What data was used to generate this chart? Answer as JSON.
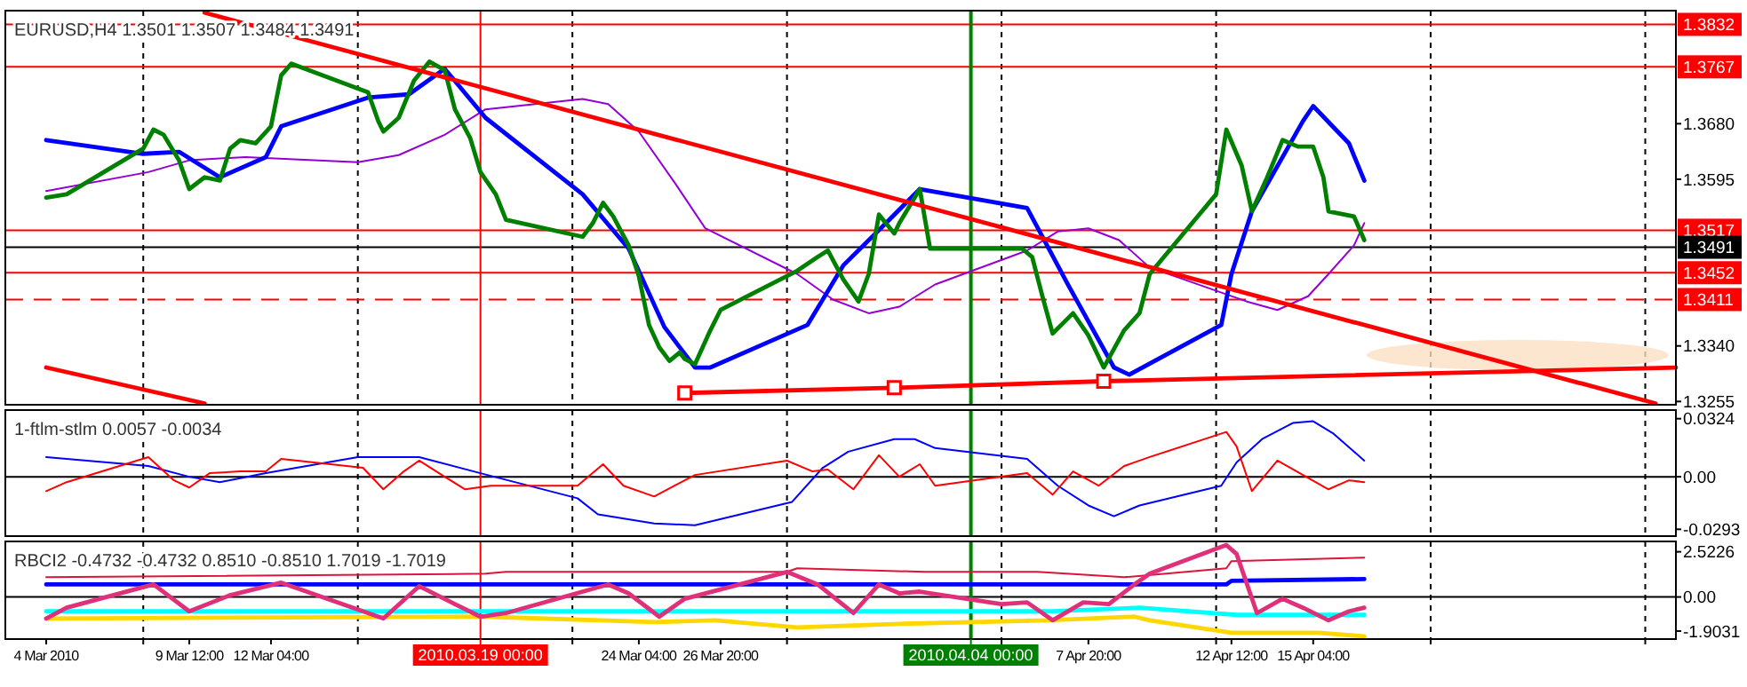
{
  "chart_data": [
    {
      "type": "line",
      "title": "EURUSD,H4  1.3501 1.3507 1.3484 1.3491",
      "xlim": [
        "2010-03-03T12:00",
        "2010-04-27T00:00"
      ],
      "ylim": [
        1.325,
        1.3853
      ],
      "tick_labels": "y",
      "grid": "x",
      "xticks": [
        {
          "value": "2010-03-08",
          "label": null
        },
        {
          "value": "2010-03-15",
          "label": null
        },
        {
          "value": "2010-03-22",
          "label": null
        },
        {
          "value": "2010-03-29",
          "label": null
        },
        {
          "value": "2010-04-05",
          "label": null
        },
        {
          "value": "2010-04-12",
          "label": null
        },
        {
          "value": "2010-04-19",
          "label": null
        },
        {
          "value": "2010-04-26",
          "label": null
        }
      ],
      "yticks": [
        1.3255,
        {
          "value": 1.334,
          "label": "1.3340"
        },
        1.3595,
        {
          "value": 1.368,
          "label": "1.3680"
        }
      ],
      "ref_lines": [
        {
          "axis": "y",
          "value": 1.3832,
          "label": "1.3832",
          "color": "#ff0000"
        },
        {
          "axis": "y",
          "value": 1.3767,
          "label": "1.3767",
          "color": "#ff0000"
        },
        {
          "axis": "y",
          "value": 1.3517,
          "label": "1.3517",
          "color": "#ff0000"
        },
        {
          "axis": "y",
          "value": 1.3491,
          "label": "1.3491",
          "color": "#000000"
        },
        {
          "axis": "y",
          "value": 1.3452,
          "label": "1.3452",
          "color": "#ff0000"
        },
        {
          "axis": "y",
          "value": 1.3411,
          "label": "1.3411",
          "color": "#ff0000",
          "line_style": "dashed"
        },
        {
          "axis": "x",
          "value": "2010-03-19T00:00",
          "color": "#ff0000"
        },
        {
          "axis": "x",
          "value": "2010-04-04T00:00",
          "color": "#008000"
        }
      ],
      "series": [
        {
          "color": "#9400d3",
          "x": [
            "2010-03-04T20:00",
            "2010-03-08T04:00",
            "2010-03-09T12:00",
            "2010-03-11T08:00",
            "2010-03-15T00:00",
            "2010-03-16T08:00",
            "2010-03-17T20:00",
            "2010-03-19T04:00",
            "2010-03-22T08:00",
            "2010-03-23T04:00",
            "2010-03-24T04:00",
            "2010-03-25T08:00",
            "2010-03-26T08:00",
            "2010-03-29T08:00",
            "2010-03-30T12:00",
            "2010-03-31T16:00",
            "2010-04-01T16:00",
            "2010-04-02T20:00",
            "2010-04-05T20:00",
            "2010-04-06T20:00",
            "2010-04-07T20:00",
            "2010-04-08T20:00",
            "2010-04-09T20:00",
            "2010-04-13T00:00",
            "2010-04-14T00:00",
            "2010-04-15T00:00",
            "2010-04-15T16:00",
            "2010-04-16T12:00",
            "2010-04-16T20:00"
          ],
          "values": [
            1.3577,
            1.3606,
            1.3624,
            1.3629,
            1.3621,
            1.3632,
            1.3663,
            1.3702,
            1.3718,
            1.371,
            1.3668,
            1.359,
            1.352,
            1.345,
            1.3411,
            1.339,
            1.34,
            1.3434,
            1.3486,
            1.3515,
            1.352,
            1.3502,
            1.346,
            1.3408,
            1.3395,
            1.3416,
            1.345,
            1.3494,
            1.3528
          ]
        },
        {
          "color": "#0000ff",
          "x": [
            "2010-03-04T20:00",
            "2010-03-08T00:00",
            "2010-03-09T04:00",
            "2010-03-10T12:00",
            "2010-03-12T00:00",
            "2010-03-12T12:00",
            "2010-03-15T08:00",
            "2010-03-16T16:00",
            "2010-03-17T20:00",
            "2010-03-19T04:00",
            "2010-03-22T08:00",
            "2010-03-23T20:00",
            "2010-03-25T00:00",
            "2010-03-26T00:00",
            "2010-03-26T12:00",
            "2010-03-29T16:00",
            "2010-03-30T20:00",
            "2010-04-01T04:00",
            "2010-04-02T08:00",
            "2010-04-05T20:00",
            "2010-04-07T04:00",
            "2010-04-08T16:00",
            "2010-04-09T04:00",
            "2010-04-12T04:00",
            "2010-04-12T12:00",
            "2010-04-13T04:00",
            "2010-04-14T20:00",
            "2010-04-15T04:00",
            "2010-04-16T08:00",
            "2010-04-16T20:00"
          ],
          "values": [
            1.3655,
            1.3634,
            1.3637,
            1.3598,
            1.3629,
            1.3676,
            1.372,
            1.3725,
            1.3764,
            1.3689,
            1.3572,
            1.3489,
            1.3369,
            1.3307,
            1.3307,
            1.3372,
            1.3463,
            1.3525,
            1.358,
            1.3551,
            1.3434,
            1.3307,
            1.3296,
            1.3372,
            1.345,
            1.3546,
            1.3684,
            1.3707,
            1.365,
            1.3593
          ]
        },
        {
          "color": "#008000",
          "x": [
            "2010-03-04T20:00",
            "2010-03-05T12:00",
            "2010-03-08T00:00",
            "2010-03-08T08:00",
            "2010-03-08T16:00",
            "2010-03-09T04:00",
            "2010-03-09T12:00",
            "2010-03-10T00:00",
            "2010-03-10T12:00",
            "2010-03-10T20:00",
            "2010-03-11T04:00",
            "2010-03-11T16:00",
            "2010-03-12T04:00",
            "2010-03-12T12:00",
            "2010-03-12T20:00",
            "2010-03-15T08:00",
            "2010-03-15T16:00",
            "2010-03-15T20:00",
            "2010-03-16T08:00",
            "2010-03-16T20:00",
            "2010-03-17T08:00",
            "2010-03-17T20:00",
            "2010-03-18T04:00",
            "2010-03-18T16:00",
            "2010-03-19T00:00",
            "2010-03-19T12:00",
            "2010-03-19T20:00",
            "2010-03-22T08:00",
            "2010-03-22T16:00",
            "2010-03-23T00:00",
            "2010-03-23T08:00",
            "2010-03-23T20:00",
            "2010-03-24T04:00",
            "2010-03-24T12:00",
            "2010-03-24T20:00",
            "2010-03-25T04:00",
            "2010-03-25T12:00",
            "2010-03-25T16:00",
            "2010-03-26T00:00",
            "2010-03-26T12:00",
            "2010-03-26T20:00",
            "2010-03-29T08:00",
            "2010-03-30T00:00",
            "2010-03-30T08:00",
            "2010-03-30T20:00",
            "2010-03-31T08:00",
            "2010-03-31T16:00",
            "2010-04-01T00:00",
            "2010-04-01T12:00",
            "2010-04-01T16:00",
            "2010-04-02T08:00",
            "2010-04-02T16:00",
            "2010-04-05T16:00",
            "2010-04-06T00:00",
            "2010-04-06T08:00",
            "2010-04-06T16:00",
            "2010-04-07T08:00",
            "2010-04-07T20:00",
            "2010-04-08T08:00",
            "2010-04-09T00:00",
            "2010-04-09T12:00",
            "2010-04-09T20:00",
            "2010-04-12T00:00",
            "2010-04-12T08:00",
            "2010-04-12T20:00",
            "2010-04-13T04:00",
            "2010-04-13T16:00",
            "2010-04-14T04:00",
            "2010-04-14T16:00",
            "2010-04-15T04:00",
            "2010-04-15T12:00",
            "2010-04-15T16:00",
            "2010-04-16T12:00",
            "2010-04-16T16:00",
            "2010-04-16T20:00"
          ],
          "values": [
            1.3567,
            1.3572,
            1.3642,
            1.3671,
            1.3663,
            1.3624,
            1.358,
            1.3598,
            1.3593,
            1.3642,
            1.3655,
            1.365,
            1.3676,
            1.3754,
            1.3772,
            1.3728,
            1.3684,
            1.3668,
            1.3689,
            1.3746,
            1.3775,
            1.3762,
            1.3702,
            1.3658,
            1.3606,
            1.3572,
            1.3533,
            1.3507,
            1.3528,
            1.3559,
            1.3538,
            1.3494,
            1.3447,
            1.3372,
            1.3338,
            1.3317,
            1.333,
            1.332,
            1.3312,
            1.3364,
            1.3395,
            1.3455,
            1.3476,
            1.3486,
            1.3442,
            1.3408,
            1.345,
            1.3541,
            1.3512,
            1.3528,
            1.358,
            1.3489,
            1.3489,
            1.3476,
            1.3416,
            1.3359,
            1.339,
            1.3356,
            1.3307,
            1.3364,
            1.339,
            1.345,
            1.3572,
            1.3671,
            1.3616,
            1.3546,
            1.3598,
            1.3655,
            1.3645,
            1.3645,
            1.3598,
            1.3546,
            1.3538,
            1.352,
            1.3502
          ]
        },
        {
          "color": "#ff0000",
          "x": [
            "2010-03-10T00:00",
            "2010-04-26T08:00"
          ],
          "values": [
            1.385,
            1.3252
          ]
        },
        {
          "color": "#ff0000",
          "x": [
            "2010-03-04T20:00",
            "2010-03-10T00:00"
          ],
          "values": [
            1.3307,
            1.3252
          ]
        },
        {
          "color": "#ff0000",
          "x": [
            "2010-04-08T08:00",
            "2010-04-27T00:00"
          ],
          "values": [
            1.3286,
            1.3307
          ]
        },
        {
          "color": "#ff0000",
          "marker": "square",
          "x": [
            "2010-03-25T16:00",
            "2010-04-01T12:00",
            "2010-04-08T08:00"
          ],
          "values": [
            1.3268,
            1.3276,
            1.3286
          ]
        }
      ]
    },
    {
      "type": "line",
      "title": "1-ftlm-stlm 0.0057 -0.0034",
      "xlim": [
        "2010-03-03T12:00",
        "2010-04-27T00:00"
      ],
      "ylim": [
        -0.0331,
        0.0372
      ],
      "tick_labels": "y",
      "grid": "x",
      "xticks": [
        {
          "value": "2010-03-08",
          "label": null
        },
        {
          "value": "2010-03-15",
          "label": null
        },
        {
          "value": "2010-03-22",
          "label": null
        },
        {
          "value": "2010-03-29",
          "label": null
        },
        {
          "value": "2010-04-05",
          "label": null
        },
        {
          "value": "2010-04-12",
          "label": null
        },
        {
          "value": "2010-04-19",
          "label": null
        },
        {
          "value": "2010-04-26",
          "label": null
        }
      ],
      "yticks": [
        -0.0293,
        {
          "value": 0,
          "label": "0.00"
        },
        0.0324
      ],
      "ref_lines": [
        {
          "axis": "y",
          "value": 0,
          "color": "#000000"
        },
        {
          "axis": "x",
          "value": "2010-03-19T00:00",
          "color": "#ff0000"
        },
        {
          "axis": "x",
          "value": "2010-04-04T00:00",
          "color": "#008000"
        }
      ],
      "series": [
        {
          "color": "#0000ff",
          "x": [
            "2010-03-04T20:00",
            "2010-03-08T04:00",
            "2010-03-09T12:00",
            "2010-03-10T12:00",
            "2010-03-12T00:00",
            "2010-03-15T00:00",
            "2010-03-17T00:00",
            "2010-03-19T00:00",
            "2010-03-22T04:00",
            "2010-03-22T20:00",
            "2010-03-24T16:00",
            "2010-03-26T00:00",
            "2010-03-29T04:00",
            "2010-03-30T04:00",
            "2010-03-31T00:00",
            "2010-04-01T12:00",
            "2010-04-02T04:00",
            "2010-04-02T20:00",
            "2010-04-05T20:00",
            "2010-04-06T20:00",
            "2010-04-07T20:00",
            "2010-04-08T16:00",
            "2010-04-09T12:00",
            "2010-04-12T04:00",
            "2010-04-12T16:00",
            "2010-04-13T12:00",
            "2010-04-14T12:00",
            "2010-04-15T04:00",
            "2010-04-15T20:00",
            "2010-04-16T20:00"
          ],
          "values": [
            0.011,
            0.006,
            0,
            -0.003,
            0.002,
            0.011,
            0.011,
            0.002,
            -0.012,
            -0.021,
            -0.026,
            -0.027,
            -0.014,
            0.005,
            0.014,
            0.021,
            0.021,
            0.016,
            0.01,
            -0.005,
            -0.016,
            -0.022,
            -0.016,
            -0.005,
            0.008,
            0.021,
            0.03,
            0.031,
            0.024,
            0.009
          ]
        },
        {
          "color": "#ff0000",
          "x": [
            "2010-03-04T20:00",
            "2010-03-05T12:00",
            "2010-03-08T04:00",
            "2010-03-09T00:00",
            "2010-03-09T12:00",
            "2010-03-10T04:00",
            "2010-03-11T04:00",
            "2010-03-12T00:00",
            "2010-03-12T12:00",
            "2010-03-15T04:00",
            "2010-03-15T20:00",
            "2010-03-16T12:00",
            "2010-03-17T00:00",
            "2010-03-17T20:00",
            "2010-03-18T12:00",
            "2010-03-19T08:00",
            "2010-03-22T04:00",
            "2010-03-23T00:00",
            "2010-03-23T16:00",
            "2010-03-24T16:00",
            "2010-03-25T08:00",
            "2010-03-26T00:00",
            "2010-03-29T00:00",
            "2010-03-29T20:00",
            "2010-03-30T08:00",
            "2010-03-31T04:00",
            "2010-04-01T00:00",
            "2010-04-01T16:00",
            "2010-04-02T08:00",
            "2010-04-02T20:00",
            "2010-04-05T20:00",
            "2010-04-06T16:00",
            "2010-04-07T08:00",
            "2010-04-08T04:00",
            "2010-04-09T00:00",
            "2010-04-09T20:00",
            "2010-04-12T08:00",
            "2010-04-12T16:00",
            "2010-04-13T04:00",
            "2010-04-14T00:00",
            "2010-04-14T20:00",
            "2010-04-15T16:00",
            "2010-04-16T08:00",
            "2010-04-16T20:00"
          ],
          "values": [
            -0.008,
            -0.003,
            0.011,
            -0.002,
            -0.006,
            0.002,
            0.003,
            0.003,
            0.01,
            0.005,
            -0.007,
            0.003,
            0.009,
            0,
            -0.007,
            -0.005,
            -0.005,
            0.007,
            -0.005,
            -0.011,
            -0.005,
            0.001,
            0.009,
            0.003,
            0.004,
            -0.007,
            0.012,
            0,
            0.007,
            -0.005,
            0.002,
            -0.01,
            0.003,
            -0.005,
            0.006,
            0.011,
            0.025,
            0.017,
            -0.008,
            0.009,
            0.001,
            -0.007,
            -0.002,
            -0.003
          ]
        }
      ]
    },
    {
      "type": "line",
      "title": "RBCI2 -0.4732 -0.4732 0.8510 -0.8510 1.7019 -1.7019",
      "xlim": [
        "2010-03-03T12:00",
        "2010-04-27T00:00"
      ],
      "ylim": [
        -2.35,
        3.1
      ],
      "grid": "x",
      "xticks": [
        {
          "value": "2010-03-04T20:00",
          "label": "4 Mar 2010"
        },
        {
          "value": "2010-03-08",
          "label": null
        },
        {
          "value": "2010-03-09T12:00",
          "label": "9 Mar 12:00"
        },
        {
          "value": "2010-03-12T04:00",
          "label": "12 Mar 04:00"
        },
        {
          "value": "2010-03-15",
          "label": null
        },
        {
          "value": "2010-03-22",
          "label": null
        },
        {
          "value": "2010-03-24T04:00",
          "label": "24 Mar 04:00"
        },
        {
          "value": "2010-03-26T20:00",
          "label": "26 Mar 20:00"
        },
        {
          "value": "2010-03-29",
          "label": null
        },
        {
          "value": "2010-04-05",
          "label": null
        },
        {
          "value": "2010-04-07T20:00",
          "label": "7 Apr 20:00"
        },
        {
          "value": "2010-04-12",
          "label": null
        },
        {
          "value": "2010-04-12T12:00",
          "label": "12 Apr 12:00"
        },
        {
          "value": "2010-04-15T04:00",
          "label": "15 Apr 04:00"
        },
        {
          "value": "2010-04-19",
          "label": null
        },
        {
          "value": "2010-04-26",
          "label": null
        }
      ],
      "yticks": [
        -1.9031,
        {
          "value": 0,
          "label": "0.00"
        },
        2.5226
      ],
      "ref_lines": [
        {
          "axis": "y",
          "value": 0,
          "color": "#000000"
        },
        {
          "axis": "x",
          "value": "2010-03-19T00:00",
          "label": "2010.03.19 00:00",
          "color": "#ff0000"
        },
        {
          "axis": "x",
          "value": "2010-04-04T00:00",
          "label": "2010.04.04 00:00",
          "color": "#008000"
        }
      ],
      "series": [
        {
          "color": "#dc143c",
          "x": [
            "2010-03-04T20:00",
            "2010-03-19T04:00",
            "2010-03-19T20:00",
            "2010-03-29T00:00",
            "2010-03-29T08:00",
            "2010-04-02T12:00",
            "2010-04-06T04:00",
            "2010-04-09T00:00",
            "2010-04-12T08:00",
            "2010-04-12T12:00",
            "2010-04-16T20:00"
          ],
          "values": [
            1.1,
            1.3,
            1.4,
            1.4,
            1.6,
            1.4,
            1.4,
            1.1,
            1.6,
            2.0,
            2.2
          ]
        },
        {
          "color": "#0000ff",
          "x": [
            "2010-03-04T20:00",
            "2010-04-12T08:00",
            "2010-04-12T12:00",
            "2010-04-16T20:00"
          ],
          "values": [
            0.7,
            0.7,
            0.9,
            1.0
          ]
        },
        {
          "color": "#00ffff",
          "x": [
            "2010-03-04T20:00",
            "2010-04-06T16:00",
            "2010-04-09T12:00",
            "2010-04-12T16:00",
            "2010-04-16T20:00"
          ],
          "values": [
            -0.8,
            -0.8,
            -0.6,
            -1.0,
            -1.0
          ]
        },
        {
          "color": "#ffd700",
          "x": [
            "2010-03-04T20:00",
            "2010-03-19T04:00",
            "2010-03-24T16:00",
            "2010-03-26T16:00",
            "2010-03-29T08:00",
            "2010-04-01T16:00",
            "2010-04-06T12:00",
            "2010-04-09T08:00",
            "2010-04-09T20:00",
            "2010-04-12T12:00",
            "2010-04-15T08:00",
            "2010-04-16T20:00"
          ],
          "values": [
            -1.2,
            -1.1,
            -1.4,
            -1.3,
            -1.7,
            -1.5,
            -1.3,
            -1.1,
            -1.3,
            -2.0,
            -2.0,
            -2.2
          ]
        },
        {
          "color": "#e0307a",
          "x": [
            "2010-03-04T20:00",
            "2010-03-05T12:00",
            "2010-03-08T08:00",
            "2010-03-09T12:00",
            "2010-03-10T20:00",
            "2010-03-12T12:00",
            "2010-03-15T20:00",
            "2010-03-17T00:00",
            "2010-03-18T04:00",
            "2010-03-19T00:00",
            "2010-03-19T20:00",
            "2010-03-23T04:00",
            "2010-03-23T20:00",
            "2010-03-24T20:00",
            "2010-03-25T16:00",
            "2010-03-29T00:00",
            "2010-03-30T00:00",
            "2010-03-31T04:00",
            "2010-04-01T00:00",
            "2010-04-01T16:00",
            "2010-04-02T08:00",
            "2010-04-05T00:00",
            "2010-04-05T20:00",
            "2010-04-06T16:00",
            "2010-04-07T16:00",
            "2010-04-08T12:00",
            "2010-04-09T08:00",
            "2010-04-09T20:00",
            "2010-04-12T08:00",
            "2010-04-12T16:00",
            "2010-04-13T08:00",
            "2010-04-14T04:00",
            "2010-04-14T20:00",
            "2010-04-15T16:00",
            "2010-04-16T08:00",
            "2010-04-16T20:00"
          ],
          "values": [
            -1.2,
            -0.6,
            0.7,
            -0.8,
            0.1,
            0.8,
            -1.2,
            0.6,
            -0.4,
            -1.1,
            -0.9,
            0.7,
            0.2,
            -1.1,
            -0.1,
            1.4,
            0.7,
            -0.9,
            0.7,
            0.2,
            0.3,
            -0.4,
            -0.3,
            -1.3,
            -0.3,
            -0.4,
            0.7,
            1.3,
            2.9,
            2.4,
            -0.9,
            -0.1,
            -0.6,
            -1.3,
            -0.8,
            -0.6
          ]
        }
      ]
    }
  ]
}
